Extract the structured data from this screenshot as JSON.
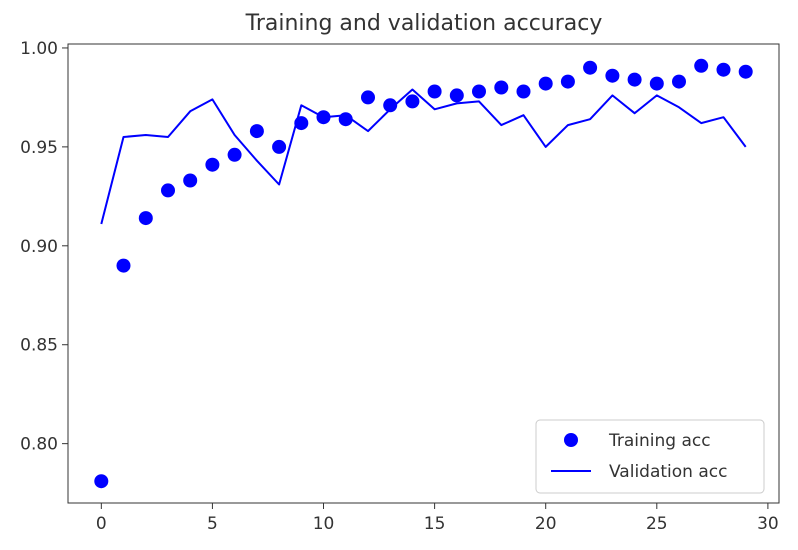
{
  "chart_data": {
    "type": "line",
    "title": "Training and validation accuracy",
    "xlabel": "",
    "ylabel": "",
    "xlim": [
      -1.5,
      30.5
    ],
    "ylim": [
      0.77,
      1.002
    ],
    "xticks": [
      0,
      5,
      10,
      15,
      20,
      25,
      30
    ],
    "yticks": [
      0.8,
      0.85,
      0.9,
      0.95,
      1.0
    ],
    "xtick_labels": [
      "0",
      "5",
      "10",
      "15",
      "20",
      "25",
      "30"
    ],
    "ytick_labels": [
      "0.80",
      "0.85",
      "0.90",
      "0.95",
      "1.00"
    ],
    "grid": false,
    "legend_position": "lower-right",
    "series": [
      {
        "name": "Training acc",
        "style": "markers",
        "color": "#0000ff",
        "x": [
          0,
          1,
          2,
          3,
          4,
          5,
          6,
          7,
          8,
          9,
          10,
          11,
          12,
          13,
          14,
          15,
          16,
          17,
          18,
          19,
          20,
          21,
          22,
          23,
          24,
          25,
          26,
          27,
          28,
          29
        ],
        "values": [
          0.781,
          0.89,
          0.914,
          0.928,
          0.933,
          0.941,
          0.946,
          0.958,
          0.95,
          0.962,
          0.965,
          0.964,
          0.975,
          0.971,
          0.973,
          0.978,
          0.976,
          0.978,
          0.98,
          0.978,
          0.982,
          0.983,
          0.99,
          0.986,
          0.984,
          0.982,
          0.983,
          0.991,
          0.989,
          0.988
        ]
      },
      {
        "name": "Validation acc",
        "style": "line",
        "color": "#0000ff",
        "x": [
          0,
          1,
          2,
          3,
          4,
          5,
          6,
          7,
          8,
          9,
          10,
          11,
          12,
          13,
          14,
          15,
          16,
          17,
          18,
          19,
          20,
          21,
          22,
          23,
          24,
          25,
          26,
          27,
          28,
          29
        ],
        "values": [
          0.911,
          0.955,
          0.956,
          0.955,
          0.968,
          0.974,
          0.956,
          0.943,
          0.931,
          0.971,
          0.965,
          0.966,
          0.958,
          0.969,
          0.979,
          0.969,
          0.972,
          0.973,
          0.961,
          0.966,
          0.95,
          0.961,
          0.964,
          0.976,
          0.967,
          0.976,
          0.97,
          0.962,
          0.965,
          0.95
        ]
      }
    ]
  }
}
